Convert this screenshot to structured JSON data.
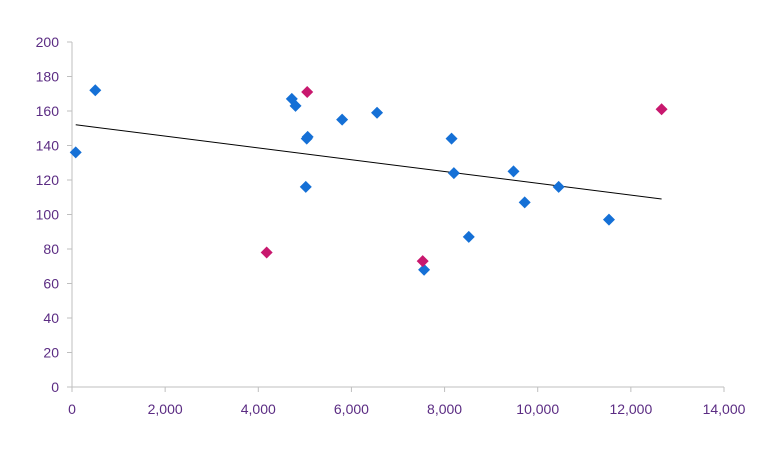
{
  "chart_data": {
    "type": "scatter",
    "title": "",
    "xlabel": "",
    "ylabel": "",
    "xlim": [
      0,
      14000
    ],
    "ylim": [
      0,
      200
    ],
    "x_ticks": [
      0,
      2000,
      4000,
      6000,
      8000,
      10000,
      12000,
      14000
    ],
    "x_tick_labels": [
      "0",
      "2,000",
      "4,000",
      "6,000",
      "8,000",
      "10,000",
      "12,000",
      "14,000"
    ],
    "y_ticks": [
      0,
      20,
      40,
      60,
      80,
      100,
      120,
      140,
      160,
      180,
      200
    ],
    "y_tick_labels": [
      "0",
      "20",
      "40",
      "60",
      "80",
      "100",
      "120",
      "140",
      "160",
      "180",
      "200"
    ],
    "grid": false,
    "legend": "none",
    "colors": {
      "axis": "#bfbfbf",
      "tick_text": "#5b2c83",
      "trendline": "#000000"
    },
    "series": [
      {
        "color": "#1570d6",
        "marker": "diamond",
        "points": [
          {
            "x": 80,
            "y": 136
          },
          {
            "x": 500,
            "y": 172
          },
          {
            "x": 4720,
            "y": 167
          },
          {
            "x": 4800,
            "y": 163
          },
          {
            "x": 5020,
            "y": 116
          },
          {
            "x": 5040,
            "y": 144
          },
          {
            "x": 5060,
            "y": 145
          },
          {
            "x": 5800,
            "y": 155
          },
          {
            "x": 6550,
            "y": 159
          },
          {
            "x": 7560,
            "y": 68
          },
          {
            "x": 8150,
            "y": 144
          },
          {
            "x": 8200,
            "y": 124
          },
          {
            "x": 8520,
            "y": 87
          },
          {
            "x": 9480,
            "y": 125
          },
          {
            "x": 9720,
            "y": 107
          },
          {
            "x": 10450,
            "y": 116
          },
          {
            "x": 11530,
            "y": 97
          }
        ]
      },
      {
        "color": "#c8186e",
        "marker": "diamond",
        "points": [
          {
            "x": 4180,
            "y": 78
          },
          {
            "x": 5050,
            "y": 171
          },
          {
            "x": 7530,
            "y": 73
          },
          {
            "x": 12660,
            "y": 161
          }
        ]
      }
    ],
    "trendline": {
      "type": "linear",
      "x_start": 80,
      "y_start": 152,
      "x_end": 12660,
      "y_end": 109
    }
  }
}
